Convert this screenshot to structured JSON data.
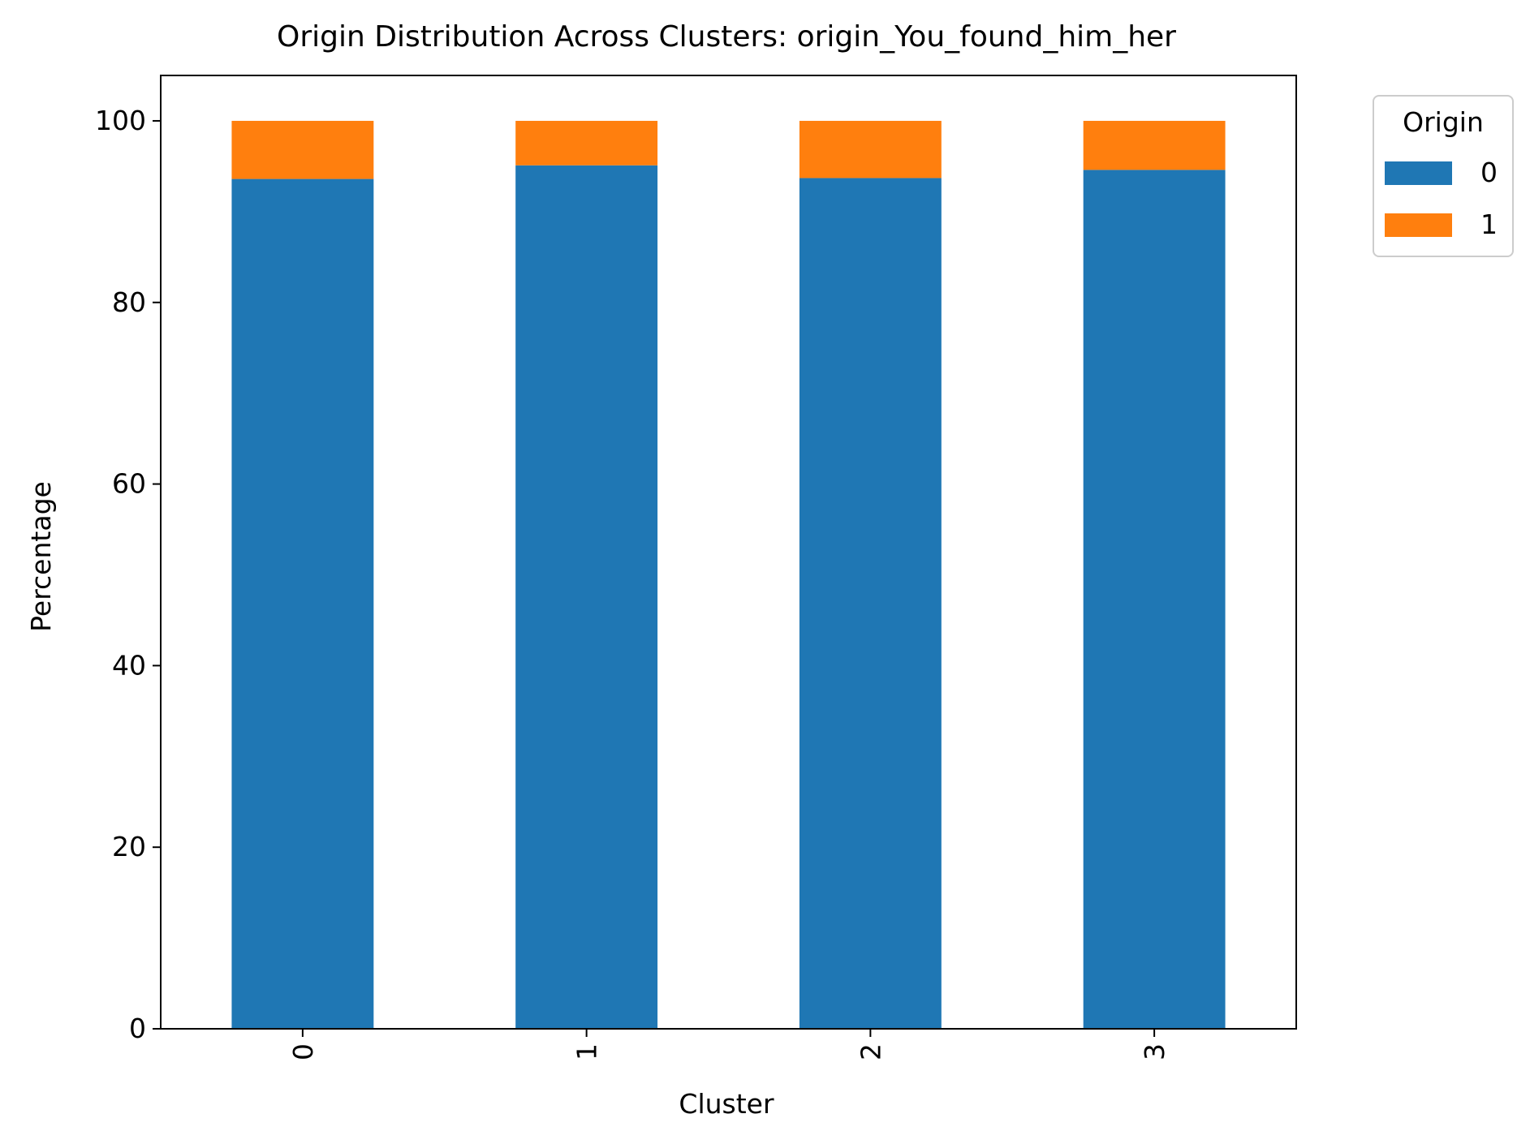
{
  "chart_data": {
    "type": "bar",
    "stacked": true,
    "title": "Origin Distribution Across Clusters: origin_You_found_him_her",
    "xlabel": "Cluster",
    "ylabel": "Percentage",
    "categories": [
      "0",
      "1",
      "2",
      "3"
    ],
    "x_tick_rotation": 90,
    "ylim": [
      0,
      105
    ],
    "y_ticks": [
      0,
      20,
      40,
      60,
      80,
      100
    ],
    "grid": false,
    "legend": {
      "title": "Origin",
      "placement": "outside-top-right"
    },
    "series": [
      {
        "name": "0",
        "color": "#1f77b4",
        "values": [
          93.6,
          95.1,
          93.7,
          94.6
        ]
      },
      {
        "name": "1",
        "color": "#ff7f0e",
        "values": [
          6.4,
          4.9,
          6.3,
          5.4
        ]
      }
    ]
  }
}
